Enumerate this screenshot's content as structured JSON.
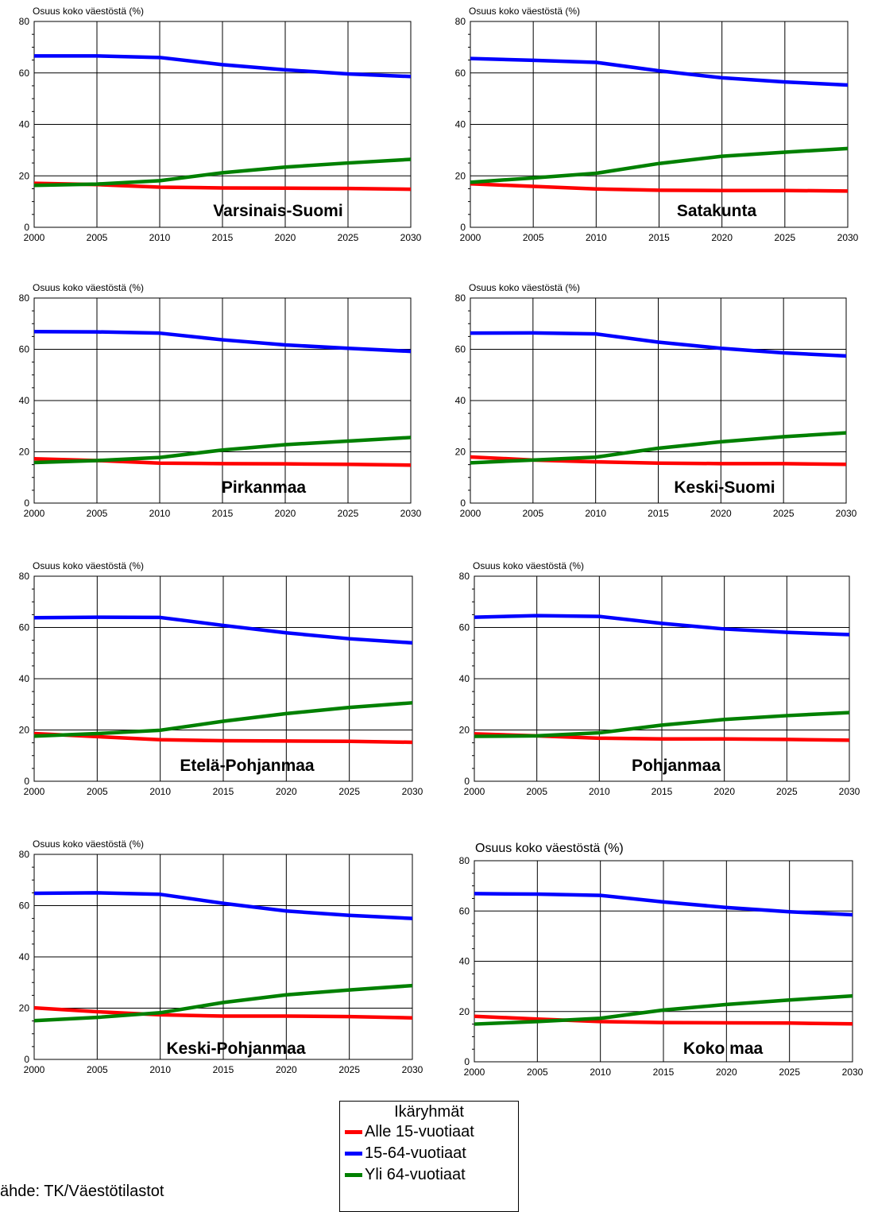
{
  "colors": {
    "alle15": "#ff0000",
    "tyoika": "#0000ff",
    "yli64": "#008000"
  },
  "legend": {
    "title": "Ikäryhmät",
    "items": [
      {
        "label": "Alle 15-vuotiaat",
        "color": "#ff0000"
      },
      {
        "label": "15-64-vuotiaat",
        "color": "#0000ff"
      },
      {
        "label": "Yli 64-vuotiaat",
        "color": "#008000"
      }
    ]
  },
  "source": "ähde: TK/Väestötilastot",
  "chart_data": [
    {
      "type": "line",
      "title": "Varsinais-Suomi",
      "ylabel": "Osuus koko väestöstä (%)",
      "x": [
        2000,
        2005,
        2010,
        2015,
        2020,
        2025,
        2030
      ],
      "xlim": [
        2000,
        2030
      ],
      "ylim": [
        0,
        80
      ],
      "yticks": [
        0,
        20,
        40,
        60,
        80
      ],
      "grid": true,
      "series": [
        {
          "name": "Alle 15-vuotiaat",
          "color": "#ff0000",
          "values": [
            17.1,
            16.6,
            15.6,
            15.3,
            15.2,
            15.1,
            14.8
          ]
        },
        {
          "name": "15-64-vuotiaat",
          "color": "#0000ff",
          "values": [
            66.6,
            66.6,
            66.0,
            63.2,
            61.2,
            59.6,
            58.6
          ]
        },
        {
          "name": "Yli 64-vuotiaat",
          "color": "#008000",
          "values": [
            16.3,
            16.8,
            18.1,
            21.2,
            23.4,
            25.0,
            26.4
          ]
        }
      ]
    },
    {
      "type": "line",
      "title": "Satakunta",
      "ylabel": "Osuus koko väestöstä (%)",
      "x": [
        2000,
        2005,
        2010,
        2015,
        2020,
        2025,
        2030
      ],
      "xlim": [
        2000,
        2030
      ],
      "ylim": [
        0,
        80
      ],
      "yticks": [
        0,
        20,
        40,
        60,
        80
      ],
      "grid": true,
      "series": [
        {
          "name": "Alle 15-vuotiaat",
          "color": "#ff0000",
          "values": [
            16.9,
            15.9,
            14.9,
            14.4,
            14.3,
            14.3,
            14.1
          ]
        },
        {
          "name": "15-64-vuotiaat",
          "color": "#0000ff",
          "values": [
            65.6,
            64.9,
            64.1,
            60.8,
            58.1,
            56.5,
            55.3
          ]
        },
        {
          "name": "Yli 64-vuotiaat",
          "color": "#008000",
          "values": [
            17.5,
            19.2,
            21.0,
            24.8,
            27.6,
            29.2,
            30.6
          ]
        }
      ]
    },
    {
      "type": "line",
      "title": "Pirkanmaa",
      "ylabel": "Osuus koko väestöstä (%)",
      "x": [
        2000,
        2005,
        2010,
        2015,
        2020,
        2025,
        2030
      ],
      "xlim": [
        2000,
        2030
      ],
      "ylim": [
        0,
        80
      ],
      "yticks": [
        0,
        20,
        40,
        60,
        80
      ],
      "grid": true,
      "series": [
        {
          "name": "Alle 15-vuotiaat",
          "color": "#ff0000",
          "values": [
            17.3,
            16.6,
            15.6,
            15.4,
            15.3,
            15.1,
            14.8
          ]
        },
        {
          "name": "15-64-vuotiaat",
          "color": "#0000ff",
          "values": [
            66.9,
            66.8,
            66.3,
            63.7,
            61.7,
            60.4,
            59.2
          ]
        },
        {
          "name": "Yli 64-vuotiaat",
          "color": "#008000",
          "values": [
            15.8,
            16.6,
            17.8,
            20.7,
            22.8,
            24.2,
            25.6
          ]
        }
      ]
    },
    {
      "type": "line",
      "title": "Keski-Suomi",
      "ylabel": "Osuus koko väestöstä (%)",
      "x": [
        2000,
        2005,
        2010,
        2015,
        2020,
        2025,
        2030
      ],
      "xlim": [
        2000,
        2030
      ],
      "ylim": [
        0,
        80
      ],
      "yticks": [
        0,
        20,
        40,
        60,
        80
      ],
      "grid": true,
      "series": [
        {
          "name": "Alle 15-vuotiaat",
          "color": "#ff0000",
          "values": [
            18.0,
            16.8,
            16.1,
            15.6,
            15.4,
            15.4,
            15.1
          ]
        },
        {
          "name": "15-64-vuotiaat",
          "color": "#0000ff",
          "values": [
            66.3,
            66.4,
            66.0,
            62.8,
            60.4,
            58.6,
            57.4
          ]
        },
        {
          "name": "Yli 64-vuotiaat",
          "color": "#008000",
          "values": [
            15.7,
            16.8,
            17.9,
            21.4,
            23.9,
            25.9,
            27.4
          ]
        }
      ]
    },
    {
      "type": "line",
      "title": "Etelä-Pohjanmaa",
      "ylabel": "Osuus koko väestöstä (%)",
      "x": [
        2000,
        2005,
        2010,
        2015,
        2020,
        2025,
        2030
      ],
      "xlim": [
        2000,
        2030
      ],
      "ylim": [
        0,
        80
      ],
      "yticks": [
        0,
        20,
        40,
        60,
        80
      ],
      "grid": true,
      "series": [
        {
          "name": "Alle 15-vuotiaat",
          "color": "#ff0000",
          "values": [
            18.6,
            17.4,
            16.2,
            15.8,
            15.7,
            15.6,
            15.2
          ]
        },
        {
          "name": "15-64-vuotiaat",
          "color": "#0000ff",
          "values": [
            63.8,
            64.0,
            63.9,
            60.8,
            57.9,
            55.6,
            54.0
          ]
        },
        {
          "name": "Yli 64-vuotiaat",
          "color": "#008000",
          "values": [
            17.6,
            18.6,
            19.9,
            23.4,
            26.4,
            28.8,
            30.6
          ]
        }
      ]
    },
    {
      "type": "line",
      "title": "Pohjanmaa",
      "ylabel": "Osuus koko väestöstä (%)",
      "x": [
        2000,
        2005,
        2010,
        2015,
        2020,
        2025,
        2030
      ],
      "xlim": [
        2000,
        2030
      ],
      "ylim": [
        0,
        80
      ],
      "yticks": [
        0,
        20,
        40,
        60,
        80
      ],
      "grid": true,
      "series": [
        {
          "name": "Alle 15-vuotiaat",
          "color": "#ff0000",
          "values": [
            18.5,
            17.7,
            16.8,
            16.5,
            16.5,
            16.3,
            16.0
          ]
        },
        {
          "name": "15-64-vuotiaat",
          "color": "#0000ff",
          "values": [
            64.0,
            64.6,
            64.3,
            61.6,
            59.4,
            58.1,
            57.2
          ]
        },
        {
          "name": "Yli 64-vuotiaat",
          "color": "#008000",
          "values": [
            17.5,
            17.7,
            18.9,
            21.9,
            24.1,
            25.6,
            26.8
          ]
        }
      ]
    },
    {
      "type": "line",
      "title": "Keski-Pohjanmaa",
      "ylabel": "Osuus koko väestöstä (%)",
      "x": [
        2000,
        2005,
        2010,
        2015,
        2020,
        2025,
        2030
      ],
      "xlim": [
        2000,
        2030
      ],
      "ylim": [
        0,
        80
      ],
      "yticks": [
        0,
        20,
        40,
        60,
        80
      ],
      "grid": true,
      "series": [
        {
          "name": "Alle 15-vuotiaat",
          "color": "#ff0000",
          "values": [
            20.1,
            18.6,
            17.4,
            16.9,
            16.9,
            16.7,
            16.2
          ]
        },
        {
          "name": "15-64-vuotiaat",
          "color": "#0000ff",
          "values": [
            64.8,
            65.0,
            64.4,
            60.9,
            57.9,
            56.2,
            55.0
          ]
        },
        {
          "name": "Yli 64-vuotiaat",
          "color": "#008000",
          "values": [
            15.1,
            16.4,
            18.2,
            22.2,
            25.2,
            27.1,
            28.8
          ]
        }
      ]
    },
    {
      "type": "line",
      "title": "Koko maa",
      "ylabel": "Osuus koko väestöstä (%)",
      "x": [
        2000,
        2005,
        2010,
        2015,
        2020,
        2025,
        2030
      ],
      "xlim": [
        2000,
        2030
      ],
      "ylim": [
        0,
        80
      ],
      "yticks": [
        0,
        20,
        40,
        60,
        80
      ],
      "grid": true,
      "series": [
        {
          "name": "Alle 15-vuotiaat",
          "color": "#ff0000",
          "values": [
            18.1,
            17.0,
            16.0,
            15.6,
            15.5,
            15.4,
            15.1
          ]
        },
        {
          "name": "15-64-vuotiaat",
          "color": "#0000ff",
          "values": [
            66.9,
            66.7,
            66.2,
            63.6,
            61.4,
            59.7,
            58.5
          ]
        },
        {
          "name": "Yli 64-vuotiaat",
          "color": "#008000",
          "values": [
            15.0,
            16.0,
            17.3,
            20.6,
            22.8,
            24.6,
            26.2
          ]
        }
      ]
    }
  ]
}
